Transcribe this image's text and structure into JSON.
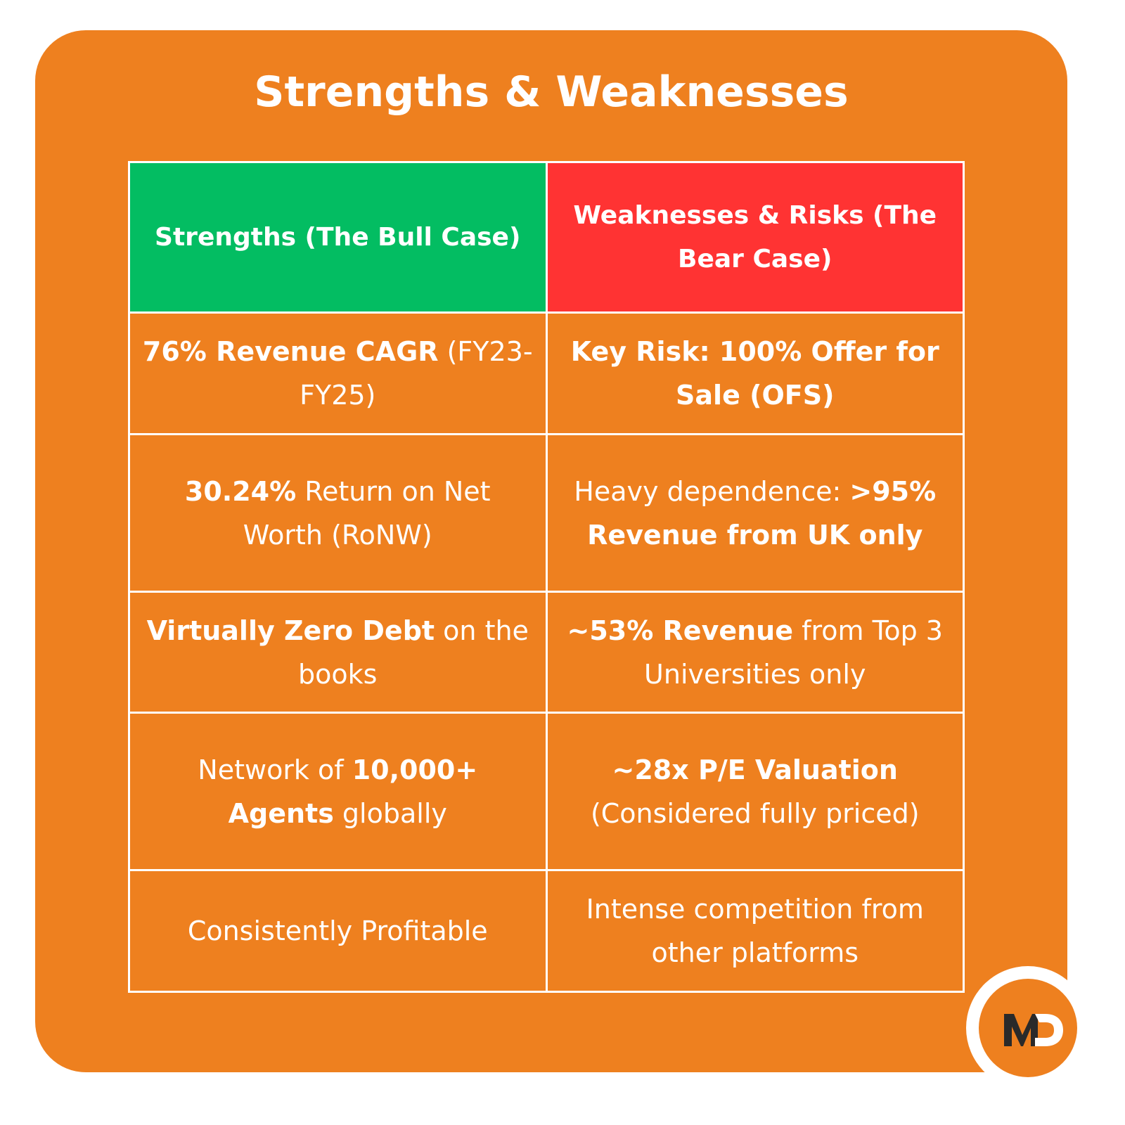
{
  "title": "Strengths & Weaknesses",
  "headers": {
    "strengths": "Strengths (The Bull Case)",
    "weaknesses": "Weaknesses & Risks (The Bear Case)"
  },
  "rows": [
    {
      "s": [
        {
          "b": "76% Revenue CAGR"
        },
        {
          "t": " (FY23-FY25)"
        }
      ],
      "w": [
        {
          "b": "Key Risk: 100% Offer for Sale (OFS)"
        }
      ]
    },
    {
      "s": [
        {
          "b": "30.24%"
        },
        {
          "t": " Return on Net Worth (RoNW)"
        }
      ],
      "w": [
        {
          "t": "Heavy dependence: "
        },
        {
          "b": ">95% Revenue from UK only"
        }
      ]
    },
    {
      "s": [
        {
          "b": "Virtually Zero Debt"
        },
        {
          "t": " on the books"
        }
      ],
      "w": [
        {
          "b": "~53% Revenue"
        },
        {
          "t": " from Top 3 Universities only"
        }
      ]
    },
    {
      "s": [
        {
          "t": "Network of "
        },
        {
          "b": "10,000+ Agents"
        },
        {
          "t": " globally"
        }
      ],
      "w": [
        {
          "b": "~28x P/E Valuation"
        },
        {
          "t": " (Considered fully priced)"
        }
      ]
    },
    {
      "s": [
        {
          "t": "Consistently Profitable"
        }
      ],
      "w": [
        {
          "t": "Intense competition from other platforms"
        }
      ]
    }
  ],
  "logo_text": "MD",
  "colors": {
    "background": "#ee801f",
    "strengths": "#03bd62",
    "weaknesses": "#ff3333"
  }
}
